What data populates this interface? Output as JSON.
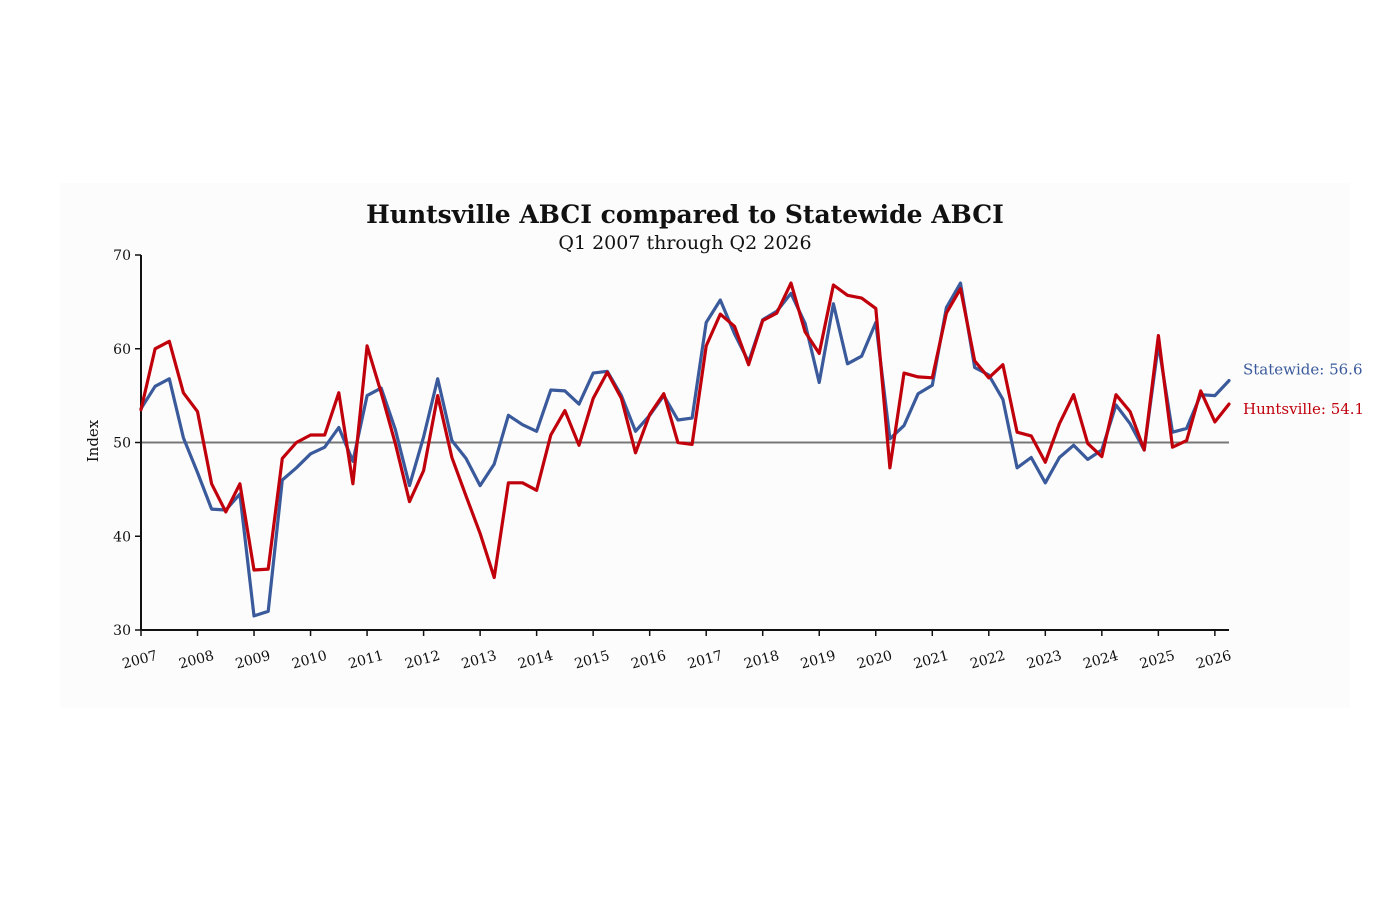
{
  "chart_data": {
    "type": "line",
    "title": "Huntsville ABCI compared to Statewide ABCI",
    "subtitle": "Q1 2007 through Q2 2026",
    "xlabel": "",
    "ylabel": "Index",
    "ylim": [
      30,
      70
    ],
    "yticks": [
      30,
      40,
      50,
      60,
      70
    ],
    "reference_line": 50,
    "x_tick_labels": [
      "2007",
      "2008",
      "2009",
      "2010",
      "2011",
      "2012",
      "2013",
      "2014",
      "2015",
      "2016",
      "2017",
      "2018",
      "2019",
      "2020",
      "2021",
      "2022",
      "2023",
      "2024",
      "2025",
      "2026"
    ],
    "x_start_year": 2007,
    "quarters_per_year": 4,
    "series": [
      {
        "name": "Statewide",
        "color": "#3a5a9c",
        "end_label": "Statewide: 56.6",
        "values": [
          53.6,
          56.0,
          56.8,
          50.5,
          46.8,
          42.9,
          42.8,
          44.5,
          31.5,
          32.0,
          46.0,
          47.3,
          48.8,
          49.5,
          51.6,
          48.0,
          55.0,
          55.8,
          51.4,
          45.4,
          50.6,
          56.8,
          50.2,
          48.3,
          45.4,
          47.7,
          52.9,
          51.9,
          51.2,
          55.6,
          55.5,
          54.1,
          57.4,
          57.6,
          55.0,
          51.2,
          52.9,
          55.0,
          52.4,
          52.6,
          62.8,
          65.2,
          61.6,
          58.6,
          63.1,
          64.0,
          65.9,
          62.7,
          56.4,
          64.8,
          58.4,
          59.2,
          62.8,
          50.4,
          51.8,
          55.2,
          56.1,
          64.4,
          67.0,
          58.0,
          57.2,
          54.6,
          47.3,
          48.4,
          45.7,
          48.4,
          49.7,
          48.2,
          49.2,
          54.0,
          52.0,
          49.2,
          60.5,
          51.1,
          51.5,
          55.1,
          55.0,
          56.6
        ]
      },
      {
        "name": "Huntsville",
        "color": "#c0000b",
        "end_label": "Huntsville: 54.1",
        "values": [
          53.5,
          60.0,
          60.8,
          55.3,
          53.3,
          45.6,
          42.6,
          45.6,
          36.4,
          36.5,
          48.3,
          50.0,
          50.8,
          50.8,
          55.3,
          45.6,
          60.3,
          55.3,
          49.9,
          43.7,
          47.0,
          55.0,
          48.4,
          44.3,
          40.3,
          35.6,
          45.7,
          45.7,
          44.9,
          50.8,
          53.4,
          49.7,
          54.7,
          57.5,
          54.7,
          48.9,
          53.0,
          55.2,
          50.0,
          49.8,
          60.3,
          63.7,
          62.4,
          58.3,
          63.0,
          63.8,
          67.0,
          61.8,
          59.5,
          66.8,
          65.7,
          65.4,
          64.3,
          47.3,
          57.4,
          57.0,
          56.9,
          63.8,
          66.4,
          58.7,
          56.9,
          58.3,
          51.1,
          50.7,
          47.9,
          52.0,
          55.1,
          49.9,
          48.5,
          55.1,
          53.3,
          49.2,
          61.4,
          49.5,
          50.2,
          55.5,
          52.2,
          54.1
        ]
      }
    ]
  }
}
